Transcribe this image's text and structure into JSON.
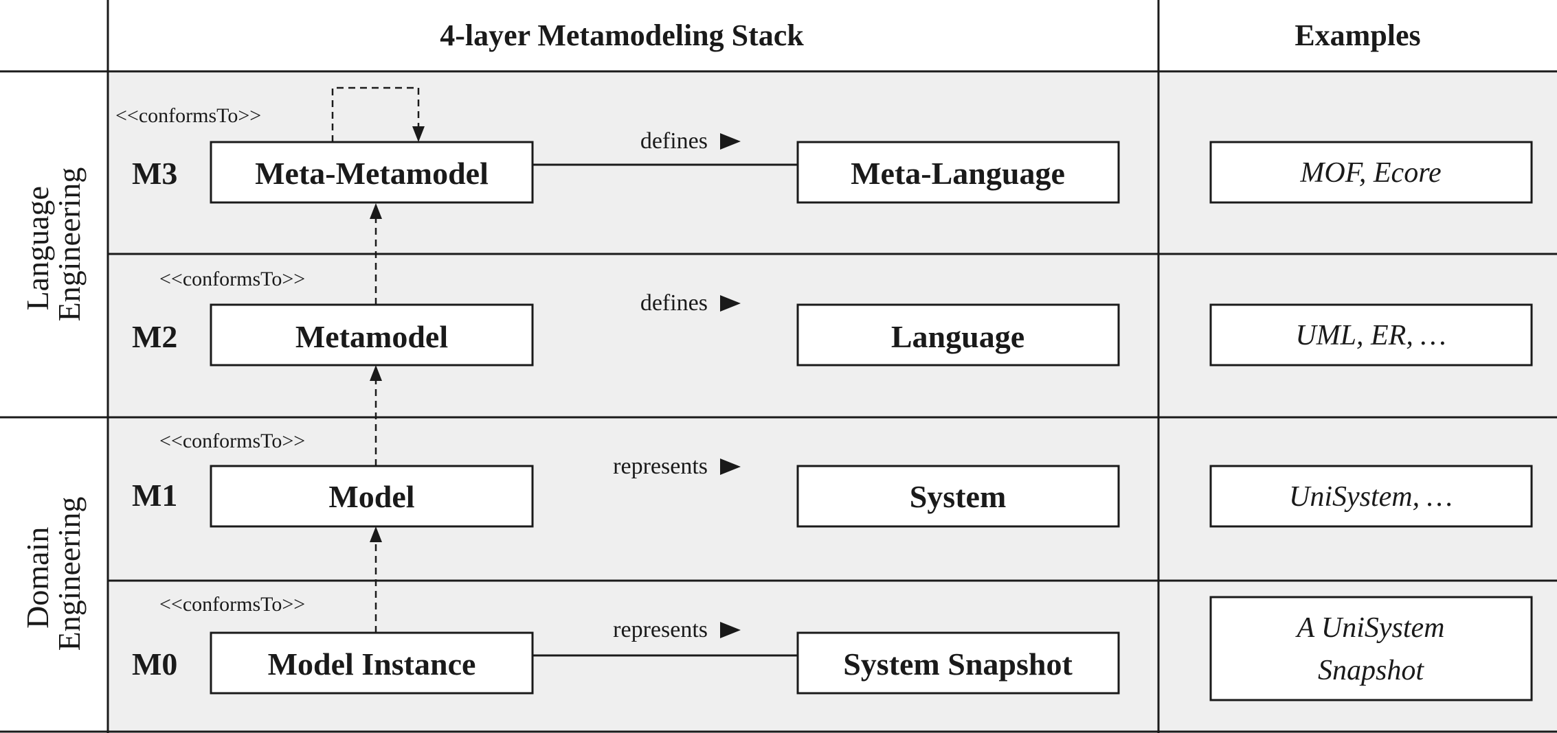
{
  "header": {
    "stack_title": "4-layer Metamodeling Stack",
    "examples_title": "Examples"
  },
  "groups": [
    {
      "lines": [
        "Language",
        "Engineering"
      ]
    },
    {
      "lines": [
        "Domain",
        "Engineering"
      ]
    }
  ],
  "layers": [
    {
      "level": "M3",
      "left": "Meta-Metamodel",
      "relation": "defines",
      "right": "Meta-Language",
      "conforms": "<<conformsTo>>",
      "example": [
        "MOF, Ecore"
      ]
    },
    {
      "level": "M2",
      "left": "Metamodel",
      "relation": "defines",
      "right": "Language",
      "conforms": "<<conformsTo>>",
      "example": [
        "UML, ER, …"
      ]
    },
    {
      "level": "M1",
      "left": "Model",
      "relation": "represents",
      "right": "System",
      "conforms": "<<conformsTo>>",
      "example": [
        "UniSystem, …"
      ]
    },
    {
      "level": "M0",
      "left": "Model Instance",
      "relation": "represents",
      "right": "System Snapshot",
      "conforms": "<<conformsTo>>",
      "example": [
        "A UniSystem",
        "Snapshot"
      ]
    }
  ],
  "colors": {
    "cell_bg": "#efefef",
    "box_bg": "#ffffff",
    "line": "#1a1a1a"
  },
  "icons": {
    "relation_arrow": "right-pointing-triangle-icon",
    "conforms_arrow": "dashed-up-arrow-icon"
  }
}
